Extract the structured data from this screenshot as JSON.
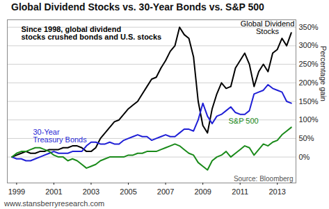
{
  "chart_data": {
    "type": "line",
    "title": "Global Dividend Stocks vs. 30-Year Bonds vs. S&P 500",
    "annotations": [
      "Since 1998, global dividend\nstocks crushed bonds and U.S. stocks",
      "Source: Bloomberg"
    ],
    "caption": "www.stansberryresearch.com",
    "y_label": "Percentage gain",
    "x": [
      1998.75,
      1999,
      1999.25,
      1999.5,
      1999.75,
      2000,
      2000.25,
      2000.5,
      2000.75,
      2001,
      2001.25,
      2001.5,
      2001.75,
      2002,
      2002.25,
      2002.5,
      2002.75,
      2003,
      2003.25,
      2003.5,
      2003.75,
      2004,
      2004.25,
      2004.5,
      2004.75,
      2005,
      2005.25,
      2005.5,
      2005.75,
      2006,
      2006.25,
      2006.5,
      2006.75,
      2007,
      2007.25,
      2007.5,
      2007.75,
      2008,
      2008.25,
      2008.5,
      2008.75,
      2009,
      2009.25,
      2009.5,
      2009.75,
      2010,
      2010.25,
      2010.5,
      2010.75,
      2011,
      2011.25,
      2011.5,
      2011.75,
      2012,
      2012.25,
      2012.5,
      2012.75,
      2013,
      2013.25,
      2013.5,
      2013.75
    ],
    "series": [
      {
        "name": "Global Dividend\nStocks",
        "color": "#000000",
        "values": [
          0,
          5,
          10,
          15,
          10,
          10,
          15,
          15,
          20,
          20,
          20,
          25,
          25,
          30,
          30,
          25,
          15,
          15,
          25,
          50,
          65,
          80,
          95,
          100,
          115,
          130,
          140,
          150,
          170,
          190,
          210,
          215,
          240,
          260,
          285,
          300,
          350,
          330,
          320,
          270,
          150,
          85,
          65,
          130,
          170,
          200,
          185,
          190,
          240,
          260,
          280,
          250,
          190,
          230,
          250,
          230,
          280,
          290,
          320,
          300,
          335
        ]
      },
      {
        "name": "30-Year\nTreasury Bonds",
        "color": "#1f1fd6",
        "values": [
          0,
          -5,
          -5,
          -10,
          -10,
          -5,
          0,
          5,
          10,
          15,
          10,
          10,
          10,
          15,
          15,
          15,
          30,
          40,
          40,
          35,
          35,
          40,
          35,
          35,
          45,
          50,
          55,
          60,
          55,
          55,
          45,
          50,
          55,
          60,
          55,
          55,
          65,
          75,
          75,
          70,
          100,
          145,
          110,
          90,
          110,
          115,
          125,
          135,
          120,
          115,
          115,
          125,
          170,
          175,
          180,
          195,
          185,
          180,
          175,
          150,
          145
        ]
      },
      {
        "name": "S&P 500",
        "color": "#1a8a1a",
        "values": [
          0,
          10,
          15,
          15,
          20,
          25,
          25,
          20,
          15,
          5,
          0,
          0,
          -10,
          -5,
          -10,
          -20,
          -30,
          -25,
          -20,
          -10,
          -5,
          0,
          0,
          0,
          0,
          5,
          5,
          10,
          10,
          15,
          15,
          15,
          20,
          25,
          30,
          35,
          30,
          20,
          10,
          5,
          -15,
          -25,
          -35,
          -10,
          0,
          5,
          15,
          0,
          10,
          20,
          30,
          25,
          5,
          20,
          35,
          30,
          40,
          45,
          60,
          70,
          80
        ]
      }
    ],
    "xlim": [
      1998.5,
      2014
    ],
    "xticks": [
      1999,
      2001,
      2003,
      2005,
      2007,
      2009,
      2011,
      2013
    ],
    "ylim": [
      -70,
      370
    ],
    "yticks": [
      {
        "value": 0,
        "label": "0%"
      },
      {
        "value": 50,
        "label": "50%"
      },
      {
        "value": 100,
        "label": "100%"
      },
      {
        "value": 150,
        "label": "150%"
      },
      {
        "value": 200,
        "label": "200%"
      },
      {
        "value": 250,
        "label": "250%"
      },
      {
        "value": 300,
        "label": "300%"
      },
      {
        "value": 350,
        "label": "350%"
      }
    ],
    "grid": true
  }
}
